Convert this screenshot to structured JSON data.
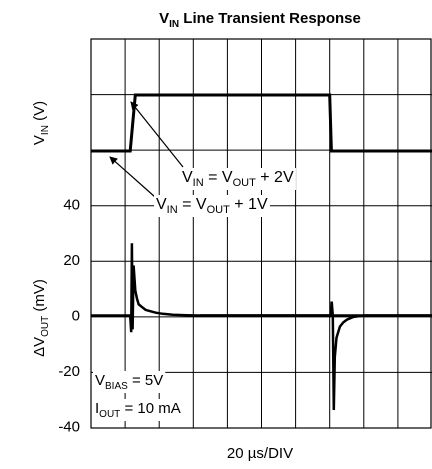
{
  "chart_data": {
    "type": "line",
    "title": {
      "main": "V",
      "sub": "IN",
      "rest": " Line Transient Response"
    },
    "xlabel": "20 µs/DIV",
    "x_divisions": 10,
    "top_panel": {
      "ylabel": {
        "main": "V",
        "sub": "IN",
        "rest": " (V)"
      },
      "series": [
        {
          "name": "VIN",
          "x": [
            0,
            1.15,
            1.3,
            7.0,
            7.05,
            10
          ],
          "y": [
            0,
            0,
            1,
            1,
            0,
            0
          ],
          "levels": [
            "VOUT + 1V",
            "VOUT + 2V"
          ]
        }
      ],
      "annotations": [
        {
          "parts": [
            [
              "V",
              ""
            ],
            [
              "IN",
              "sub"
            ],
            [
              " = V",
              ""
            ],
            [
              "OUT",
              "sub"
            ],
            [
              " + 2V",
              ""
            ]
          ]
        },
        {
          "parts": [
            [
              "V",
              ""
            ],
            [
              "IN",
              "sub"
            ],
            [
              " = V",
              ""
            ],
            [
              "OUT",
              "sub"
            ],
            [
              " + 1V",
              ""
            ]
          ]
        }
      ]
    },
    "bottom_panel": {
      "ylabel": {
        "main": "ΔV",
        "sub": "OUT",
        "rest": " (mV)"
      },
      "yticks": [
        "40",
        "20",
        "0",
        "-20",
        "-40"
      ],
      "ylim": [
        -40,
        40
      ],
      "series": [
        {
          "name": "ΔVOUT",
          "x": [
            0,
            1.1,
            1.15,
            1.18,
            1.2,
            1.22,
            1.25,
            1.3,
            1.35,
            1.4,
            1.5,
            1.6,
            1.75,
            1.9,
            2.1,
            2.4,
            2.8,
            3.2,
            10
          ],
          "y": [
            0,
            0,
            0,
            -6,
            26,
            -5,
            18,
            9,
            6,
            4,
            3,
            2,
            1.5,
            1,
            0.6,
            0.3,
            0.1,
            0,
            0
          ],
          "x2": [
            7.0,
            7.03,
            7.06,
            7.09,
            7.12,
            7.15,
            7.2,
            7.3,
            7.4,
            7.5,
            7.7,
            8.0,
            10
          ],
          "y2": [
            0,
            0,
            5,
            0,
            -34,
            -15,
            -8,
            -4,
            -2.5,
            -1.5,
            -0.5,
            0,
            0
          ]
        }
      ],
      "annotations": [
        {
          "parts": [
            [
              "V",
              ""
            ],
            [
              "BIAS",
              "sub"
            ],
            [
              " = 5V",
              ""
            ]
          ]
        },
        {
          "parts": [
            [
              "I",
              ""
            ],
            [
              "OUT",
              "sub"
            ],
            [
              " = 10 mA",
              ""
            ]
          ]
        }
      ]
    }
  }
}
